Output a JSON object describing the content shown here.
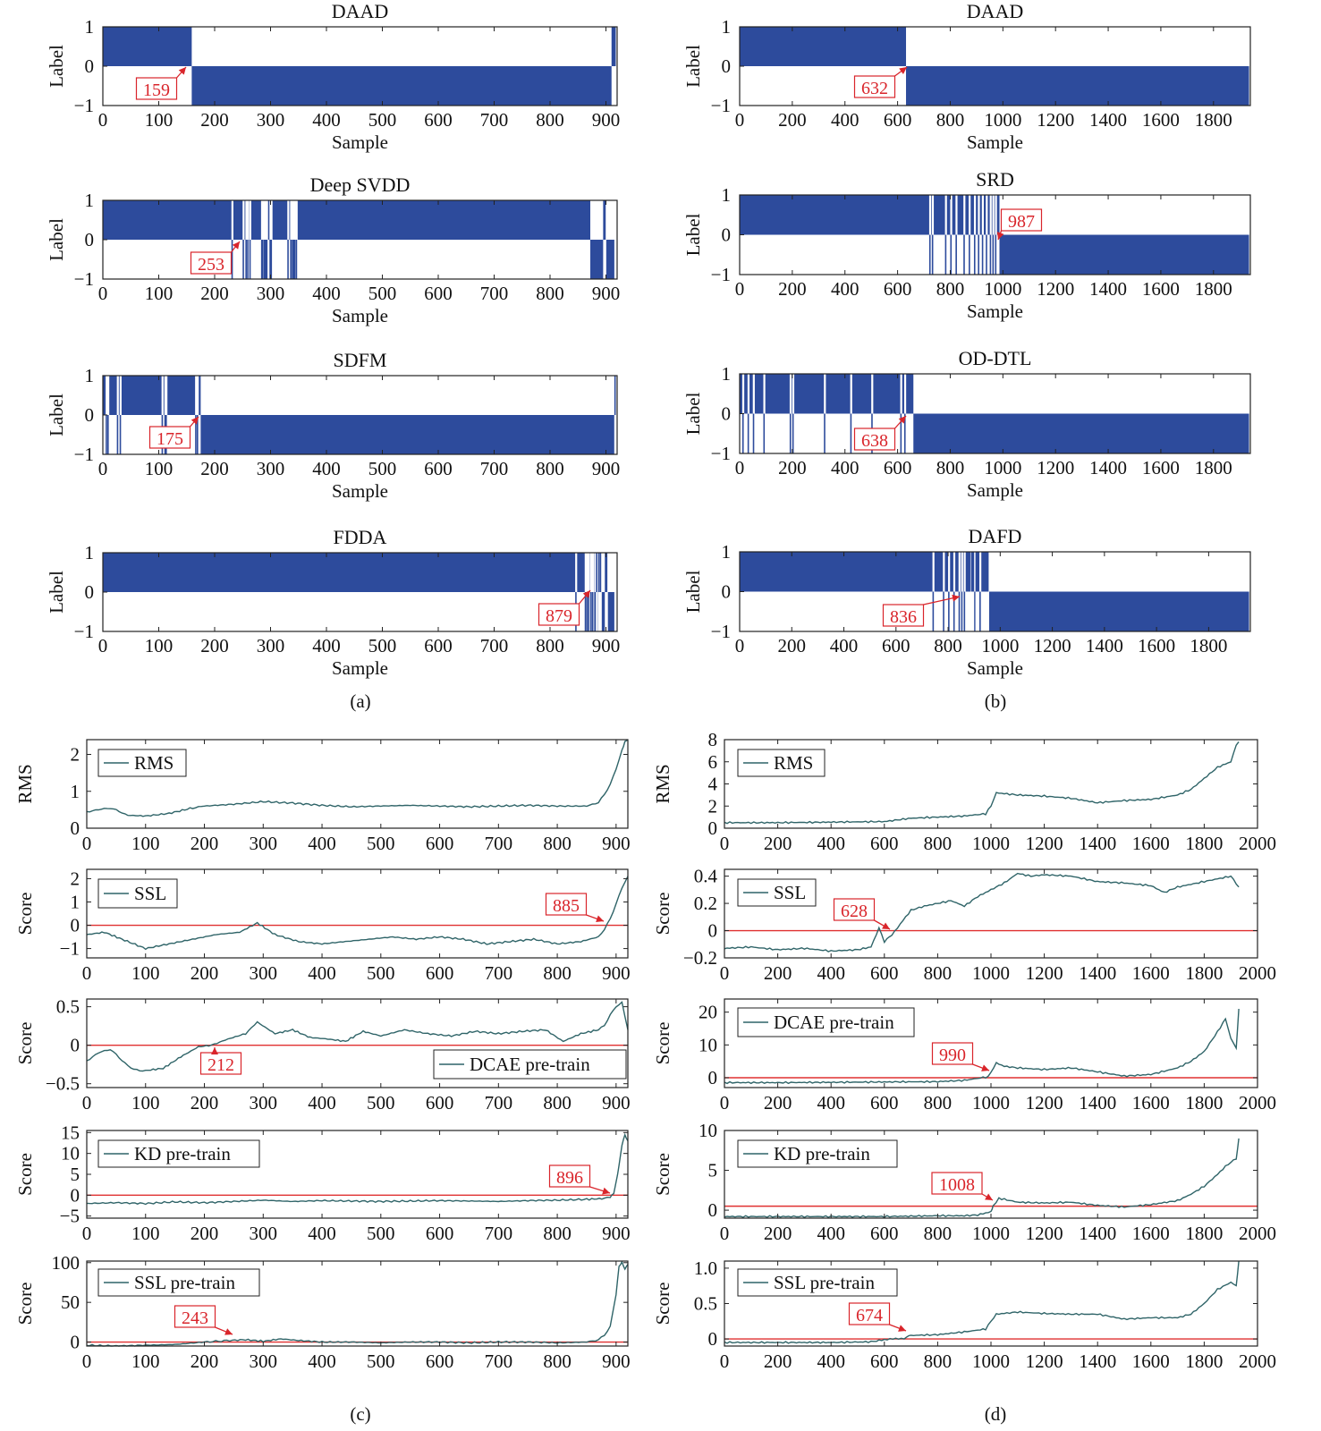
{
  "colors": {
    "fill": "#2d4b9c",
    "line": "#2f6468",
    "threshold": "#e03030",
    "annotation": "#d9252b"
  },
  "captions": [
    "(a)",
    "(b)",
    "(c)",
    "(d)"
  ],
  "label_panels": [
    {
      "title": "DAAD",
      "xlabel": "Sample",
      "ylabel": "Label",
      "xlim": [
        0,
        920
      ],
      "xticks": [
        0,
        100,
        200,
        300,
        400,
        500,
        600,
        700,
        800,
        900
      ],
      "yticks": [
        1,
        0,
        -1
      ],
      "annotation": "159",
      "change": 159,
      "pre_noise": [],
      "post_noise": [
        910,
        911,
        912,
        913,
        914,
        915
      ]
    },
    {
      "title": "Deep  SVDD",
      "xlabel": "Sample",
      "ylabel": "Label",
      "xlim": [
        0,
        920
      ],
      "xticks": [
        0,
        100,
        200,
        300,
        400,
        500,
        600,
        700,
        800,
        900
      ],
      "yticks": [
        1,
        0,
        -1
      ],
      "annotation": "253",
      "change": 872,
      "pre_noise": [
        230,
        250,
        255,
        258,
        262,
        283,
        285,
        288,
        290,
        292,
        298,
        300,
        330,
        335,
        338,
        340,
        342,
        345
      ],
      "post_noise": [
        895,
        897
      ]
    },
    {
      "title": "SDFM",
      "xlabel": "Sample",
      "ylabel": "Label",
      "xlim": [
        0,
        920
      ],
      "xticks": [
        0,
        100,
        200,
        300,
        400,
        500,
        600,
        700,
        800,
        900
      ],
      "yticks": [
        1,
        0,
        -1
      ],
      "annotation": "175",
      "change": 175,
      "pre_noise": [
        5,
        8,
        25,
        30,
        105,
        110,
        112,
        165,
        168
      ],
      "post_noise": [
        915
      ]
    },
    {
      "title": "FDDA",
      "xlabel": "Sample",
      "ylabel": "Label",
      "xlim": [
        0,
        920
      ],
      "xticks": [
        0,
        100,
        200,
        300,
        400,
        500,
        600,
        700,
        800,
        900
      ],
      "yticks": [
        1,
        0,
        -1
      ],
      "annotation": "879",
      "change": 879,
      "pre_noise": [
        845,
        862,
        865,
        868,
        872,
        875
      ],
      "post_noise": [
        882,
        886,
        889,
        898,
        900
      ]
    },
    {
      "title": "DAAD",
      "xlabel": "Sample",
      "ylabel": "Label",
      "xlim": [
        0,
        1940
      ],
      "xticks": [
        0,
        200,
        400,
        600,
        800,
        1000,
        1200,
        1400,
        1600,
        1800
      ],
      "yticks": [
        1,
        0,
        -1
      ],
      "annotation": "632",
      "change": 632,
      "pre_noise": [],
      "post_noise": []
    },
    {
      "title": "SRD",
      "xlabel": "Sample",
      "ylabel": "Label",
      "xlim": [
        0,
        1940
      ],
      "xticks": [
        0,
        200,
        400,
        600,
        800,
        1000,
        1200,
        1400,
        1600,
        1800
      ],
      "yticks": [
        1,
        0,
        -1
      ],
      "annotation": "987",
      "change": 987,
      "pre_noise": [
        720,
        730,
        780,
        800,
        820,
        850,
        870,
        890,
        905,
        920,
        935,
        950,
        960,
        970
      ],
      "post_noise": []
    },
    {
      "title": "OD-DTL",
      "xlabel": "Sample",
      "ylabel": "Label",
      "xlim": [
        0,
        1940
      ],
      "xticks": [
        0,
        200,
        400,
        600,
        800,
        1000,
        1200,
        1400,
        1600,
        1800
      ],
      "yticks": [
        1,
        0,
        -1
      ],
      "annotation": "638",
      "change": 660,
      "pre_noise": [
        10,
        30,
        50,
        90,
        190,
        200,
        320,
        420,
        500,
        610,
        625
      ],
      "post_noise": []
    },
    {
      "title": "DAFD",
      "xlabel": "Sample",
      "ylabel": "Label",
      "xlim": [
        0,
        1960
      ],
      "xticks": [
        0,
        200,
        400,
        600,
        800,
        1000,
        1200,
        1400,
        1600,
        1800
      ],
      "yticks": [
        1,
        0,
        -1
      ],
      "annotation": "836",
      "change": 955,
      "pre_noise": [
        740,
        780,
        800,
        820,
        840,
        850,
        860,
        880,
        900,
        920
      ],
      "post_noise": [
        870,
        875,
        880,
        905,
        930,
        940,
        950
      ]
    }
  ],
  "chart_data": [
    {
      "type": "line",
      "panel": "c1",
      "ylabel": "RMS",
      "legend": "RMS",
      "xlim": [
        0,
        920
      ],
      "ylim": [
        0,
        2.4
      ],
      "xticks": [
        0,
        100,
        200,
        300,
        400,
        500,
        600,
        700,
        800,
        900
      ],
      "yticks": [
        0,
        1,
        2
      ],
      "threshold": null,
      "annotation": "",
      "x": [
        0,
        20,
        40,
        60,
        70,
        100,
        140,
        180,
        200,
        250,
        300,
        350,
        400,
        450,
        500,
        550,
        600,
        650,
        700,
        750,
        800,
        850,
        870,
        880,
        890,
        900,
        910,
        915,
        920
      ],
      "y": [
        0.45,
        0.5,
        0.55,
        0.42,
        0.35,
        0.33,
        0.4,
        0.55,
        0.6,
        0.65,
        0.72,
        0.68,
        0.62,
        0.58,
        0.6,
        0.62,
        0.6,
        0.58,
        0.6,
        0.62,
        0.6,
        0.6,
        0.7,
        0.9,
        1.2,
        1.6,
        2.1,
        2.35,
        2.4
      ]
    },
    {
      "type": "line",
      "panel": "c2",
      "ylabel": "Score",
      "legend": "SSL",
      "xlim": [
        0,
        920
      ],
      "ylim": [
        -1.4,
        2.4
      ],
      "xticks": [
        0,
        100,
        200,
        300,
        400,
        500,
        600,
        700,
        800,
        900
      ],
      "yticks": [
        2,
        1,
        0,
        -1
      ],
      "threshold": 0,
      "annotation": "885",
      "x": [
        0,
        30,
        60,
        100,
        140,
        180,
        220,
        260,
        290,
        320,
        360,
        400,
        440,
        480,
        520,
        560,
        600,
        640,
        680,
        720,
        760,
        800,
        840,
        870,
        880,
        890,
        900,
        910,
        920
      ],
      "y": [
        -0.4,
        -0.3,
        -0.6,
        -1.0,
        -0.8,
        -0.6,
        -0.4,
        -0.3,
        0.1,
        -0.4,
        -0.7,
        -0.8,
        -0.7,
        -0.6,
        -0.5,
        -0.6,
        -0.5,
        -0.6,
        -0.8,
        -0.7,
        -0.6,
        -0.8,
        -0.7,
        -0.5,
        -0.2,
        0.3,
        0.9,
        1.6,
        2.1
      ]
    },
    {
      "type": "line",
      "panel": "c3",
      "ylabel": "Score",
      "legend": "DCAE pre-train",
      "xlim": [
        0,
        920
      ],
      "ylim": [
        -0.55,
        0.6
      ],
      "xticks": [
        0,
        100,
        200,
        300,
        400,
        500,
        600,
        700,
        800,
        900
      ],
      "yticks": [
        0.5,
        0,
        -0.5
      ],
      "threshold": 0,
      "annotation": "212",
      "x": [
        0,
        20,
        40,
        60,
        80,
        100,
        130,
        160,
        190,
        212,
        240,
        270,
        290,
        320,
        350,
        380,
        410,
        440,
        470,
        500,
        540,
        580,
        620,
        660,
        700,
        740,
        780,
        810,
        840,
        870,
        880,
        890,
        900,
        910,
        920
      ],
      "y": [
        -0.2,
        -0.1,
        -0.05,
        -0.2,
        -0.32,
        -0.33,
        -0.3,
        -0.15,
        -0.02,
        0.0,
        0.08,
        0.15,
        0.3,
        0.15,
        0.2,
        0.1,
        0.08,
        0.05,
        0.18,
        0.12,
        0.2,
        0.15,
        0.12,
        0.18,
        0.15,
        0.18,
        0.2,
        0.05,
        0.15,
        0.2,
        0.25,
        0.4,
        0.5,
        0.55,
        0.2
      ]
    },
    {
      "type": "line",
      "panel": "c4",
      "ylabel": "Score",
      "legend": "KD pre-train",
      "xlim": [
        0,
        920
      ],
      "ylim": [
        -5.5,
        15.5
      ],
      "xticks": [
        0,
        100,
        200,
        300,
        400,
        500,
        600,
        700,
        800,
        900
      ],
      "yticks": [
        15,
        10,
        5,
        0,
        -5
      ],
      "threshold": 0,
      "annotation": "896",
      "x": [
        0,
        50,
        100,
        150,
        200,
        250,
        300,
        350,
        400,
        450,
        500,
        550,
        600,
        650,
        700,
        750,
        800,
        850,
        880,
        890,
        896,
        900,
        905,
        910,
        915,
        920
      ],
      "y": [
        -2,
        -1.8,
        -2,
        -1.6,
        -1.8,
        -1.5,
        -1.2,
        -1.5,
        -1.3,
        -1.4,
        -1.5,
        -1.4,
        -1.3,
        -1.4,
        -1.5,
        -1.3,
        -1.2,
        -1.0,
        -0.8,
        -0.4,
        0.5,
        3,
        7,
        12,
        14.5,
        13
      ]
    },
    {
      "type": "line",
      "panel": "c5",
      "ylabel": "Score",
      "legend": "SSL pre-train",
      "xlim": [
        0,
        920
      ],
      "ylim": [
        -5,
        102
      ],
      "xticks": [
        0,
        100,
        200,
        300,
        400,
        500,
        600,
        700,
        800,
        900
      ],
      "yticks": [
        100,
        50,
        0
      ],
      "threshold": 0,
      "annotation": "243",
      "x": [
        0,
        50,
        100,
        150,
        200,
        243,
        270,
        300,
        330,
        360,
        400,
        450,
        500,
        550,
        600,
        650,
        700,
        750,
        800,
        850,
        870,
        880,
        890,
        900,
        905,
        910,
        915,
        920
      ],
      "y": [
        -4,
        -5,
        -4,
        -3,
        0,
        2,
        3,
        1,
        4,
        2,
        0,
        0,
        -1,
        0,
        0,
        -1,
        0,
        0,
        -1,
        0,
        3,
        8,
        20,
        60,
        95,
        100,
        92,
        98
      ]
    },
    {
      "type": "line",
      "panel": "d1",
      "ylabel": "RMS",
      "legend": "RMS",
      "xlim": [
        0,
        2000
      ],
      "ylim": [
        0,
        8
      ],
      "xticks": [
        0,
        200,
        400,
        600,
        800,
        1000,
        1200,
        1400,
        1600,
        1800,
        2000
      ],
      "yticks": [
        0,
        2,
        4,
        6,
        8
      ],
      "threshold": null,
      "annotation": "",
      "x": [
        0,
        200,
        400,
        600,
        700,
        800,
        900,
        980,
        1000,
        1020,
        1100,
        1200,
        1300,
        1400,
        1500,
        1600,
        1700,
        1750,
        1800,
        1850,
        1900,
        1920,
        1930
      ],
      "y": [
        0.5,
        0.5,
        0.55,
        0.6,
        0.9,
        1.0,
        1.1,
        1.3,
        2.0,
        3.2,
        3.0,
        2.9,
        2.7,
        2.3,
        2.5,
        2.6,
        3.0,
        3.5,
        4.5,
        5.5,
        6.0,
        7.5,
        7.8
      ]
    },
    {
      "type": "line",
      "panel": "d2",
      "ylabel": "Score",
      "legend": "SSL",
      "xlim": [
        0,
        2000
      ],
      "ylim": [
        -0.2,
        0.45
      ],
      "xticks": [
        0,
        200,
        400,
        600,
        800,
        1000,
        1200,
        1400,
        1600,
        1800,
        2000
      ],
      "yticks": [
        0.4,
        0.2,
        0,
        -0.2
      ],
      "threshold": 0,
      "annotation": "628",
      "x": [
        0,
        100,
        200,
        300,
        400,
        500,
        550,
        580,
        600,
        628,
        660,
        700,
        750,
        800,
        850,
        900,
        950,
        1000,
        1050,
        1100,
        1150,
        1200,
        1300,
        1400,
        1500,
        1600,
        1650,
        1700,
        1800,
        1850,
        1900,
        1930
      ],
      "y": [
        -0.13,
        -0.12,
        -0.14,
        -0.13,
        -0.15,
        -0.14,
        -0.12,
        0.02,
        -0.08,
        -0.03,
        0.05,
        0.15,
        0.18,
        0.2,
        0.22,
        0.18,
        0.25,
        0.3,
        0.35,
        0.42,
        0.4,
        0.41,
        0.4,
        0.36,
        0.35,
        0.33,
        0.28,
        0.32,
        0.36,
        0.38,
        0.4,
        0.32
      ]
    },
    {
      "type": "line",
      "panel": "d3",
      "ylabel": "Score",
      "legend": "DCAE pre-train",
      "xlim": [
        0,
        2000
      ],
      "ylim": [
        -3,
        24
      ],
      "xticks": [
        0,
        200,
        400,
        600,
        800,
        1000,
        1200,
        1400,
        1600,
        1800,
        2000
      ],
      "yticks": [
        20,
        10,
        0
      ],
      "threshold": 0,
      "annotation": "990",
      "x": [
        0,
        200,
        400,
        600,
        800,
        900,
        990,
        1020,
        1050,
        1100,
        1200,
        1300,
        1400,
        1500,
        1600,
        1700,
        1750,
        1800,
        1850,
        1880,
        1900,
        1920,
        1930
      ],
      "y": [
        -1.5,
        -1.5,
        -1.4,
        -1.3,
        -1.2,
        -0.8,
        0.3,
        4.5,
        3.5,
        3.0,
        2.5,
        3.0,
        1.8,
        0.5,
        1.0,
        3.0,
        5.0,
        8.0,
        14.0,
        18.0,
        12.0,
        9.0,
        21.0
      ]
    },
    {
      "type": "line",
      "panel": "d4",
      "ylabel": "Score",
      "legend": "KD pre-train",
      "xlim": [
        0,
        2000
      ],
      "ylim": [
        -1,
        10
      ],
      "xticks": [
        0,
        200,
        400,
        600,
        800,
        1000,
        1200,
        1400,
        1600,
        1800,
        2000
      ],
      "yticks": [
        10,
        5,
        0
      ],
      "threshold": 0.5,
      "annotation": "1008",
      "x": [
        0,
        200,
        400,
        600,
        800,
        900,
        950,
        1000,
        1008,
        1030,
        1100,
        1200,
        1300,
        1400,
        1500,
        1600,
        1700,
        1750,
        1800,
        1850,
        1880,
        1900,
        1920,
        1930
      ],
      "y": [
        -0.8,
        -0.8,
        -0.8,
        -0.8,
        -0.7,
        -0.7,
        -0.6,
        -0.2,
        0.5,
        1.5,
        1.0,
        0.9,
        1.0,
        0.6,
        0.4,
        0.7,
        1.2,
        2.0,
        3.0,
        4.5,
        5.5,
        6.0,
        6.5,
        9.0
      ]
    },
    {
      "type": "line",
      "panel": "d5",
      "ylabel": "Score",
      "legend": "SSL pre-train",
      "xlim": [
        0,
        2000
      ],
      "ylim": [
        -0.1,
        1.1
      ],
      "xticks": [
        0,
        200,
        400,
        600,
        800,
        1000,
        1200,
        1400,
        1600,
        1800,
        2000
      ],
      "yticks": [
        1.0,
        0.5,
        0
      ],
      "threshold": 0,
      "annotation": "674",
      "x": [
        0,
        200,
        400,
        550,
        600,
        674,
        700,
        800,
        900,
        980,
        1000,
        1020,
        1100,
        1200,
        1300,
        1400,
        1500,
        1600,
        1700,
        1750,
        1800,
        1850,
        1900,
        1920,
        1930
      ],
      "y": [
        -0.05,
        -0.05,
        -0.05,
        -0.04,
        -0.01,
        0.01,
        0.05,
        0.06,
        0.1,
        0.14,
        0.25,
        0.35,
        0.38,
        0.36,
        0.35,
        0.35,
        0.28,
        0.3,
        0.3,
        0.35,
        0.5,
        0.7,
        0.8,
        0.75,
        1.1
      ]
    }
  ]
}
